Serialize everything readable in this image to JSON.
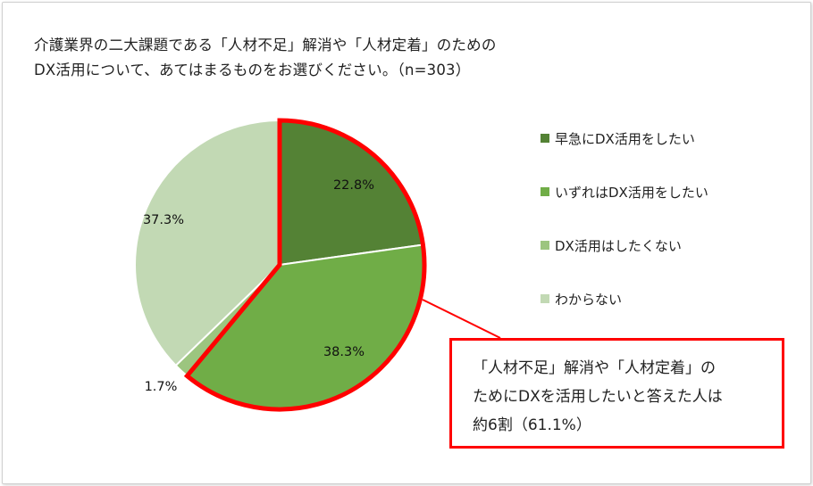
{
  "title": {
    "line1": "介護業界の二大課題である「人材不足」解消や「人材定着」のための",
    "line2": "DX活用について、あてはまるものをお選びください。（n=303）"
  },
  "chart_data": {
    "type": "pie",
    "title": "介護業界の二大課題である「人材不足」解消や「人材定着」のためのDX活用について、あてはまるものをお選びください。（n=303）",
    "categories": [
      "早急にDX活用をしたい",
      "いずれはDX活用をしたい",
      "DX活用はしたくない",
      "わからない"
    ],
    "values": [
      22.8,
      38.3,
      1.7,
      37.3
    ],
    "value_labels": [
      "22.8%",
      "38.3%",
      "1.7%",
      "37.3%"
    ],
    "colors": [
      "#548235",
      "#70ad47",
      "#9cc57f",
      "#c2d9b4"
    ],
    "legend_position": "right",
    "highlight": {
      "slices": [
        0,
        1
      ],
      "color": "#ff0000",
      "annotation": [
        "「人材不足」解消や「人材定着」の",
        "ためにDXを活用したいと答えた人は",
        "約6割（61.1%）"
      ]
    }
  }
}
